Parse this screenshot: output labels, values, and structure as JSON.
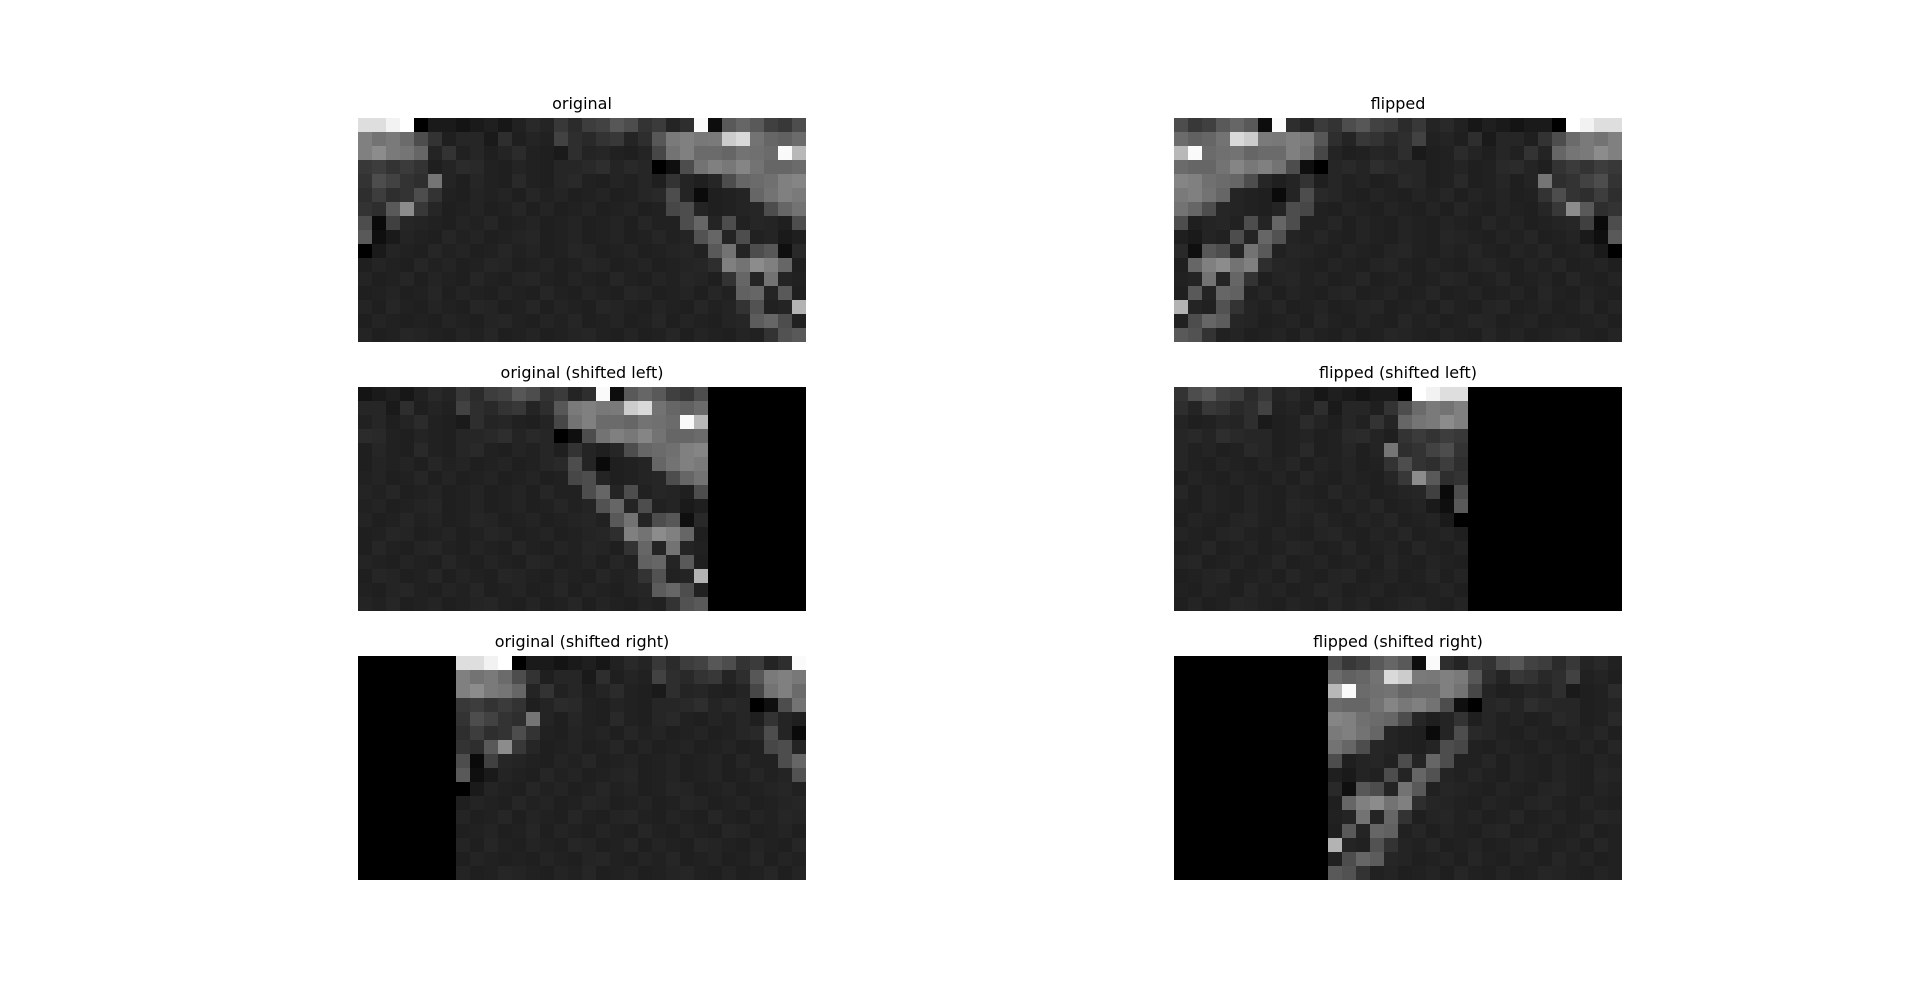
{
  "chart_data": {
    "type": "heatmap",
    "colormap": "gray",
    "value_range": [
      0,
      1
    ],
    "grid": false,
    "panels": [
      {
        "id": "original",
        "title": "original",
        "shift": 0
      },
      {
        "id": "flipped",
        "title": "flipped",
        "shift": 0
      },
      {
        "id": "original-left",
        "title": "original (shifted left)",
        "shift": -7
      },
      {
        "id": "flipped-left",
        "title": "flipped (shifted left)",
        "shift": -11
      },
      {
        "id": "original-right",
        "title": "original (shifted right)",
        "shift": 7
      },
      {
        "id": "flipped-right",
        "title": "flipped (shifted right)",
        "shift": 11
      }
    ],
    "base_image_rows": [
      [
        0.87,
        0.87,
        0.95,
        1.0,
        0.0,
        0.1,
        0.1,
        0.08,
        0.1,
        0.12,
        0.09,
        0.13,
        0.16,
        0.14,
        0.22,
        0.17,
        0.24,
        0.26,
        0.34,
        0.3,
        0.2,
        0.23,
        0.14,
        0.18,
        0.98,
        0.05,
        0.35,
        0.4,
        0.35,
        0.25,
        0.22,
        0.3
      ],
      [
        0.5,
        0.45,
        0.48,
        0.42,
        0.3,
        0.2,
        0.12,
        0.15,
        0.15,
        0.1,
        0.18,
        0.12,
        0.14,
        0.13,
        0.26,
        0.18,
        0.16,
        0.2,
        0.22,
        0.14,
        0.18,
        0.34,
        0.48,
        0.5,
        0.47,
        0.48,
        0.8,
        0.85,
        0.45,
        0.4,
        0.38,
        0.42
      ],
      [
        0.5,
        0.55,
        0.48,
        0.46,
        0.4,
        0.14,
        0.2,
        0.13,
        0.15,
        0.12,
        0.14,
        0.17,
        0.13,
        0.12,
        0.1,
        0.18,
        0.14,
        0.15,
        0.13,
        0.12,
        0.14,
        0.28,
        0.45,
        0.5,
        0.42,
        0.42,
        0.4,
        0.45,
        0.44,
        0.42,
        0.98,
        0.72
      ],
      [
        0.22,
        0.24,
        0.2,
        0.23,
        0.2,
        0.12,
        0.14,
        0.17,
        0.16,
        0.13,
        0.12,
        0.14,
        0.13,
        0.12,
        0.15,
        0.15,
        0.16,
        0.18,
        0.14,
        0.16,
        0.15,
        0.0,
        0.06,
        0.3,
        0.45,
        0.5,
        0.47,
        0.52,
        0.45,
        0.4,
        0.4,
        0.42
      ],
      [
        0.2,
        0.3,
        0.26,
        0.2,
        0.18,
        0.46,
        0.14,
        0.12,
        0.15,
        0.13,
        0.12,
        0.16,
        0.13,
        0.12,
        0.15,
        0.16,
        0.13,
        0.12,
        0.14,
        0.13,
        0.15,
        0.12,
        0.2,
        0.14,
        0.12,
        0.15,
        0.3,
        0.4,
        0.42,
        0.44,
        0.5,
        0.52
      ],
      [
        0.18,
        0.24,
        0.18,
        0.2,
        0.3,
        0.2,
        0.13,
        0.12,
        0.14,
        0.13,
        0.14,
        0.12,
        0.15,
        0.13,
        0.14,
        0.12,
        0.13,
        0.14,
        0.12,
        0.13,
        0.15,
        0.16,
        0.3,
        0.14,
        0.04,
        0.12,
        0.13,
        0.14,
        0.4,
        0.45,
        0.5,
        0.48
      ],
      [
        0.2,
        0.18,
        0.35,
        0.55,
        0.22,
        0.15,
        0.12,
        0.13,
        0.14,
        0.12,
        0.13,
        0.15,
        0.12,
        0.14,
        0.12,
        0.13,
        0.14,
        0.12,
        0.13,
        0.14,
        0.12,
        0.13,
        0.28,
        0.3,
        0.14,
        0.12,
        0.13,
        0.14,
        0.15,
        0.3,
        0.4,
        0.45
      ],
      [
        0.3,
        0.04,
        0.25,
        0.15,
        0.14,
        0.13,
        0.12,
        0.14,
        0.13,
        0.15,
        0.12,
        0.13,
        0.14,
        0.12,
        0.13,
        0.14,
        0.12,
        0.13,
        0.14,
        0.12,
        0.15,
        0.13,
        0.13,
        0.3,
        0.4,
        0.14,
        0.3,
        0.13,
        0.15,
        0.14,
        0.12,
        0.3
      ],
      [
        0.35,
        0.06,
        0.1,
        0.14,
        0.13,
        0.12,
        0.15,
        0.13,
        0.14,
        0.12,
        0.13,
        0.14,
        0.15,
        0.12,
        0.13,
        0.14,
        0.12,
        0.13,
        0.14,
        0.12,
        0.13,
        0.15,
        0.13,
        0.14,
        0.32,
        0.4,
        0.14,
        0.3,
        0.13,
        0.14,
        0.1,
        0.12
      ],
      [
        0.0,
        0.1,
        0.14,
        0.13,
        0.12,
        0.15,
        0.13,
        0.14,
        0.12,
        0.13,
        0.15,
        0.13,
        0.14,
        0.12,
        0.13,
        0.15,
        0.14,
        0.12,
        0.13,
        0.14,
        0.12,
        0.13,
        0.14,
        0.15,
        0.13,
        0.35,
        0.45,
        0.14,
        0.3,
        0.34,
        0.06,
        0.16
      ],
      [
        0.12,
        0.14,
        0.13,
        0.12,
        0.15,
        0.13,
        0.14,
        0.12,
        0.13,
        0.15,
        0.14,
        0.12,
        0.13,
        0.14,
        0.12,
        0.13,
        0.15,
        0.14,
        0.12,
        0.13,
        0.14,
        0.12,
        0.13,
        0.14,
        0.15,
        0.18,
        0.5,
        0.45,
        0.55,
        0.5,
        0.4,
        0.12
      ],
      [
        0.14,
        0.12,
        0.13,
        0.15,
        0.12,
        0.14,
        0.13,
        0.12,
        0.15,
        0.13,
        0.12,
        0.14,
        0.15,
        0.13,
        0.12,
        0.14,
        0.13,
        0.12,
        0.15,
        0.13,
        0.12,
        0.14,
        0.13,
        0.15,
        0.14,
        0.12,
        0.2,
        0.4,
        0.14,
        0.45,
        0.14,
        0.13
      ],
      [
        0.12,
        0.13,
        0.14,
        0.12,
        0.13,
        0.15,
        0.12,
        0.14,
        0.13,
        0.12,
        0.14,
        0.13,
        0.12,
        0.15,
        0.13,
        0.12,
        0.14,
        0.13,
        0.12,
        0.15,
        0.14,
        0.12,
        0.13,
        0.14,
        0.12,
        0.15,
        0.13,
        0.38,
        0.4,
        0.14,
        0.35,
        0.12
      ],
      [
        0.14,
        0.12,
        0.15,
        0.13,
        0.12,
        0.14,
        0.13,
        0.12,
        0.15,
        0.14,
        0.12,
        0.13,
        0.15,
        0.12,
        0.14,
        0.13,
        0.12,
        0.15,
        0.14,
        0.13,
        0.12,
        0.14,
        0.13,
        0.12,
        0.15,
        0.13,
        0.14,
        0.2,
        0.32,
        0.13,
        0.14,
        0.7
      ],
      [
        0.12,
        0.14,
        0.13,
        0.12,
        0.13,
        0.12,
        0.14,
        0.13,
        0.12,
        0.14,
        0.15,
        0.13,
        0.12,
        0.14,
        0.13,
        0.15,
        0.12,
        0.13,
        0.14,
        0.12,
        0.13,
        0.15,
        0.12,
        0.14,
        0.13,
        0.12,
        0.14,
        0.15,
        0.36,
        0.4,
        0.3,
        0.13
      ],
      [
        0.14,
        0.12,
        0.13,
        0.15,
        0.14,
        0.13,
        0.12,
        0.14,
        0.13,
        0.15,
        0.12,
        0.13,
        0.14,
        0.12,
        0.13,
        0.14,
        0.15,
        0.13,
        0.12,
        0.14,
        0.12,
        0.13,
        0.15,
        0.12,
        0.14,
        0.13,
        0.12,
        0.14,
        0.13,
        0.2,
        0.32,
        0.35
      ]
    ]
  }
}
